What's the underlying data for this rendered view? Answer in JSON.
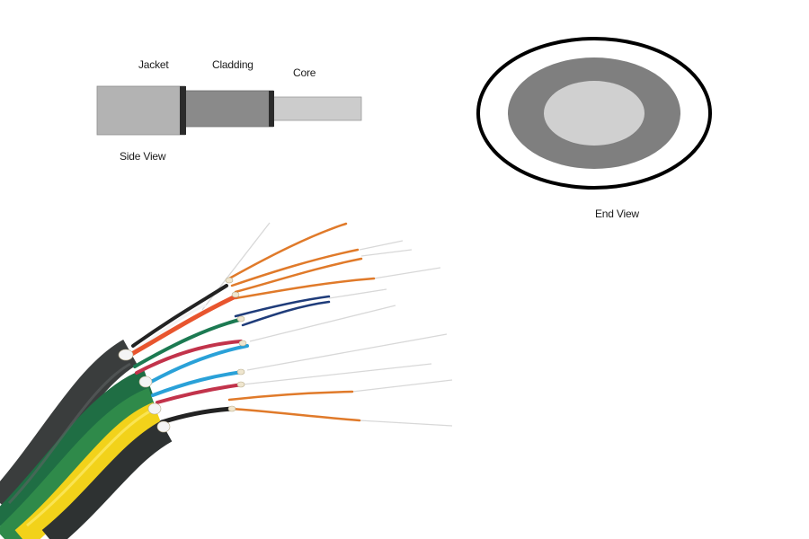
{
  "side_view": {
    "caption": "Side View",
    "labels": {
      "jacket": "Jacket",
      "cladding": "Cladding",
      "core": "Core"
    },
    "colors": {
      "jacket": "#b3b3b3",
      "cladding": "#8a8a8a",
      "core": "#cccccc",
      "separator": "#2b2b2b"
    }
  },
  "end_view": {
    "caption": "End View",
    "colors": {
      "outline": "#000000",
      "cladding": "#7f7f7f",
      "core": "#d0d0d0"
    }
  },
  "cable_illustration": {
    "jacket_colors": [
      "#3a3d3d",
      "#2f8a4a",
      "#f2d21a",
      "#2e3232"
    ],
    "fiber_colors": [
      "#e07a2a",
      "#1f3c7a",
      "#c2334b",
      "#2aa1d8",
      "#1c7a52",
      "#e8552e",
      "#232323",
      "#ffffff"
    ]
  }
}
